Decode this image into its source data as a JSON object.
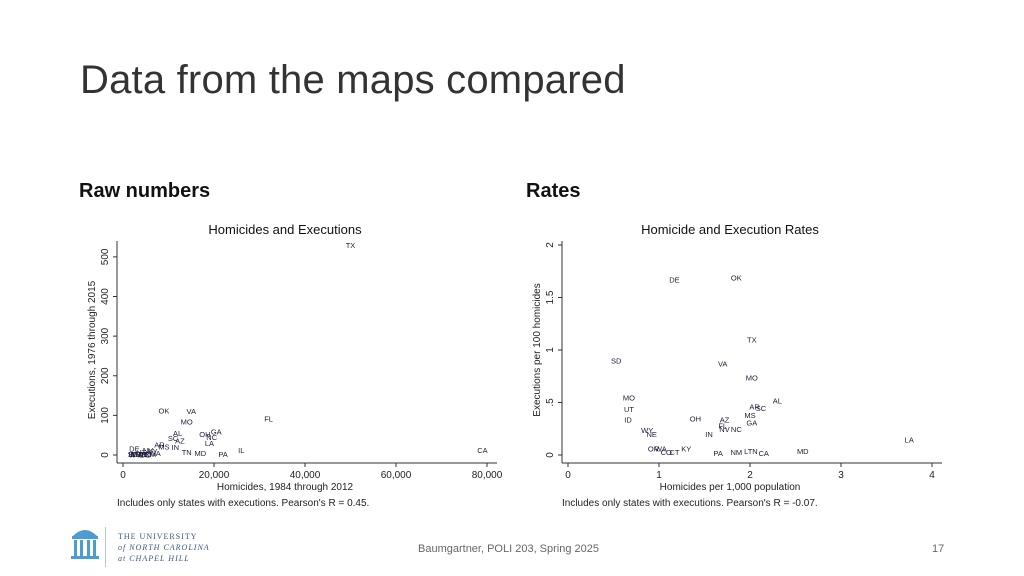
{
  "slide": {
    "title": "Data from the maps compared",
    "left_label": "Raw numbers",
    "right_label": "Rates",
    "footer": "Baumgartner, POLI 203, Spring 2025",
    "page_number": "17"
  },
  "logo": {
    "lines": [
      "THE UNIVERSITY",
      "of NORTH CAROLINA",
      "at CHAPEL HILL"
    ]
  },
  "chart_data": [
    {
      "type": "scatter",
      "title": "Homicides and Executions",
      "xlabel": "Homicides, 1984 through 2012",
      "ylabel": "Executions, 1976 through 2015",
      "note": "Includes only states with executions. Pearson's R = 0.45.",
      "xlim": [
        0,
        80000
      ],
      "ylim": [
        0,
        530
      ],
      "xticks": [
        0,
        20000,
        40000,
        60000,
        80000
      ],
      "xtick_labels": [
        "0",
        "20,000",
        "40,000",
        "60,000",
        "80,000"
      ],
      "yticks": [
        0,
        100,
        200,
        300,
        400,
        500
      ],
      "ytick_labels": [
        "0",
        "100",
        "200",
        "300",
        "400",
        "500"
      ],
      "grid": false,
      "points": [
        {
          "label": "TX",
          "x": 50000,
          "y": 530
        },
        {
          "label": "FL",
          "x": 32000,
          "y": 92
        },
        {
          "label": "CA",
          "x": 79000,
          "y": 13
        },
        {
          "label": "OK",
          "x": 9000,
          "y": 112
        },
        {
          "label": "VA",
          "x": 15000,
          "y": 111
        },
        {
          "label": "MO",
          "x": 14000,
          "y": 85
        },
        {
          "label": "GA",
          "x": 20500,
          "y": 59
        },
        {
          "label": "OH",
          "x": 18000,
          "y": 53
        },
        {
          "label": "NC",
          "x": 19500,
          "y": 45
        },
        {
          "label": "LA",
          "x": 19000,
          "y": 30
        },
        {
          "label": "AL",
          "x": 12000,
          "y": 56
        },
        {
          "label": "SC",
          "x": 11000,
          "y": 43
        },
        {
          "label": "AZ",
          "x": 12500,
          "y": 37
        },
        {
          "label": "IN",
          "x": 11500,
          "y": 20
        },
        {
          "label": "AR",
          "x": 8000,
          "y": 27
        },
        {
          "label": "MS",
          "x": 9000,
          "y": 21
        },
        {
          "label": "TN",
          "x": 14000,
          "y": 7
        },
        {
          "label": "MD",
          "x": 17000,
          "y": 5
        },
        {
          "label": "PA",
          "x": 22000,
          "y": 3
        },
        {
          "label": "IL",
          "x": 26000,
          "y": 12
        },
        {
          "label": "DE",
          "x": 2500,
          "y": 16
        },
        {
          "label": "UT",
          "x": 4000,
          "y": 7
        },
        {
          "label": "NE",
          "x": 4500,
          "y": 3
        },
        {
          "label": "NV",
          "x": 5500,
          "y": 12
        },
        {
          "label": "KY",
          "x": 6500,
          "y": 10
        },
        {
          "label": "WA",
          "x": 7000,
          "y": 5
        },
        {
          "label": "ID",
          "x": 2000,
          "y": 3
        },
        {
          "label": "MT",
          "x": 3000,
          "y": 3
        },
        {
          "label": "SD",
          "x": 2200,
          "y": 3
        },
        {
          "label": "WY",
          "x": 2600,
          "y": 1
        },
        {
          "label": "OR",
          "x": 4000,
          "y": 2
        },
        {
          "label": "CO",
          "x": 5000,
          "y": 1
        },
        {
          "label": "NM",
          "x": 6000,
          "y": 3
        },
        {
          "label": "CT",
          "x": 4500,
          "y": 1
        }
      ]
    },
    {
      "type": "scatter",
      "title": "Homicide and Execution Rates",
      "xlabel": "Homicides per 1,000 population",
      "ylabel": "Executions per 100 homicides",
      "note": "Includes only states with executions. Pearson's R = -0.07.",
      "xlim": [
        0,
        4
      ],
      "ylim": [
        0,
        2
      ],
      "xticks": [
        0,
        1,
        2,
        3,
        4
      ],
      "xtick_labels": [
        "0",
        "1",
        "2",
        "3",
        "4"
      ],
      "yticks": [
        0,
        0.5,
        1,
        1.5,
        2
      ],
      "ytick_labels": [
        "0",
        ".5",
        "1",
        "1.5",
        "2"
      ],
      "grid": false,
      "points": [
        {
          "label": "DE",
          "x": 1.17,
          "y": 1.67
        },
        {
          "label": "OK",
          "x": 1.85,
          "y": 1.69
        },
        {
          "label": "TX",
          "x": 2.02,
          "y": 1.1
        },
        {
          "label": "SD",
          "x": 0.53,
          "y": 0.9
        },
        {
          "label": "VA",
          "x": 1.7,
          "y": 0.87
        },
        {
          "label": "MO",
          "x": 2.02,
          "y": 0.74
        },
        {
          "label": "MO",
          "x": 0.67,
          "y": 0.55
        },
        {
          "label": "UT",
          "x": 0.67,
          "y": 0.44
        },
        {
          "label": "ID",
          "x": 0.66,
          "y": 0.34
        },
        {
          "label": "AL",
          "x": 2.3,
          "y": 0.52
        },
        {
          "label": "AR",
          "x": 2.05,
          "y": 0.46
        },
        {
          "label": "SC",
          "x": 2.12,
          "y": 0.45
        },
        {
          "label": "MS",
          "x": 2.0,
          "y": 0.38
        },
        {
          "label": "GA",
          "x": 2.02,
          "y": 0.31
        },
        {
          "label": "OH",
          "x": 1.4,
          "y": 0.35
        },
        {
          "label": "AZ",
          "x": 1.72,
          "y": 0.34
        },
        {
          "label": "FL",
          "x": 1.7,
          "y": 0.28
        },
        {
          "label": "NV",
          "x": 1.72,
          "y": 0.25
        },
        {
          "label": "NC",
          "x": 1.85,
          "y": 0.25
        },
        {
          "label": "IN",
          "x": 1.55,
          "y": 0.2
        },
        {
          "label": "WY",
          "x": 0.87,
          "y": 0.24
        },
        {
          "label": "NE",
          "x": 0.92,
          "y": 0.2
        },
        {
          "label": "OR",
          "x": 0.94,
          "y": 0.06
        },
        {
          "label": "WA",
          "x": 1.02,
          "y": 0.06
        },
        {
          "label": "CO",
          "x": 1.08,
          "y": 0.03
        },
        {
          "label": "CT",
          "x": 1.17,
          "y": 0.03
        },
        {
          "label": "KY",
          "x": 1.3,
          "y": 0.06
        },
        {
          "label": "PA",
          "x": 1.65,
          "y": 0.02
        },
        {
          "label": "NM",
          "x": 1.85,
          "y": 0.03
        },
        {
          "label": "LTN",
          "x": 2.01,
          "y": 0.04
        },
        {
          "label": "CA",
          "x": 2.15,
          "y": 0.02
        },
        {
          "label": "MD",
          "x": 2.58,
          "y": 0.04
        },
        {
          "label": "LA",
          "x": 3.75,
          "y": 0.15
        }
      ]
    }
  ]
}
